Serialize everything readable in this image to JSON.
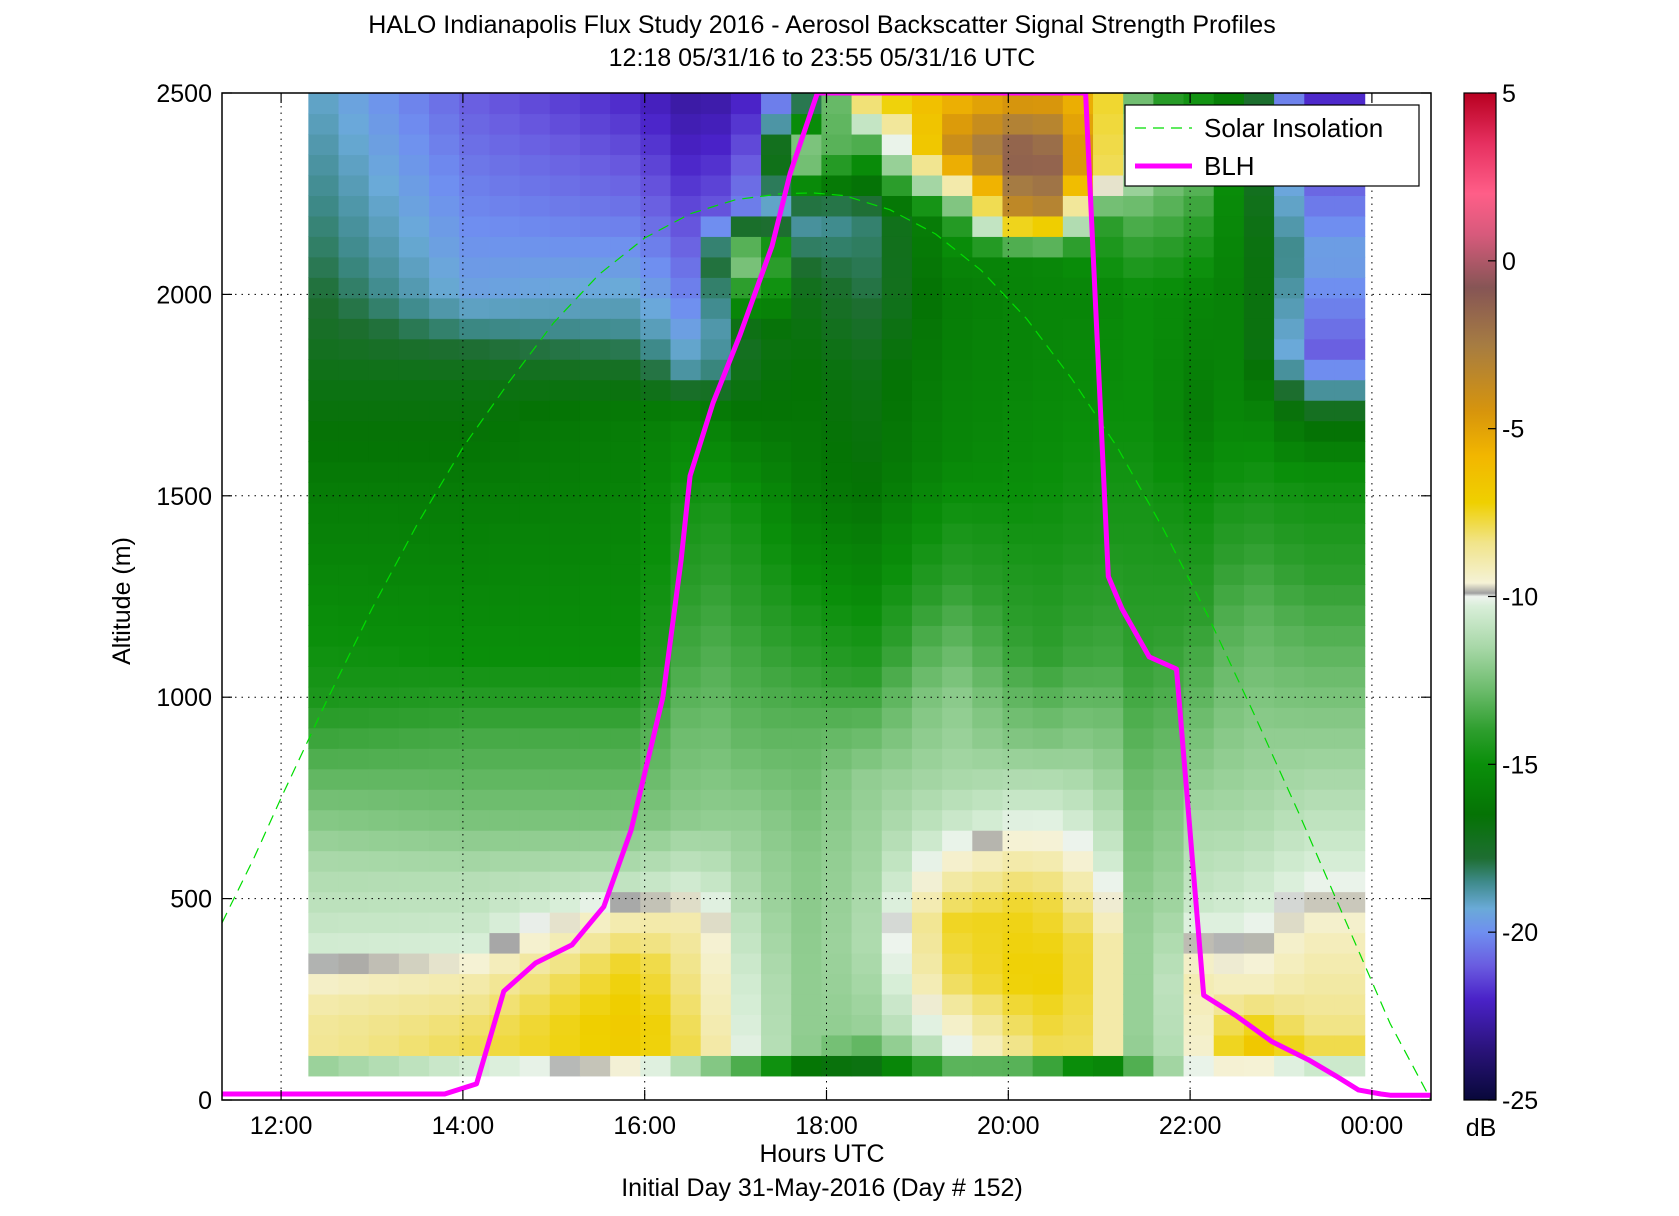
{
  "chart_data": {
    "type": "heatmap",
    "title": "HALO Indianapolis Flux Study 2016 - Aerosol Backscatter Signal Strength Profiles",
    "subtitle": "12:18 05/31/16 to 23:55 05/31/16  UTC",
    "xlabel": "Hours UTC",
    "xlabel2": "Initial Day 31-May-2016 (Day # 152)",
    "ylabel": "Altitude (m)",
    "xlim": [
      11.35,
      24.65
    ],
    "ylim": [
      0,
      2500
    ],
    "x_ticks": [
      12,
      14,
      16,
      18,
      20,
      22,
      24
    ],
    "x_tick_labels": [
      "12:00",
      "14:00",
      "16:00",
      "18:00",
      "20:00",
      "22:00",
      "00:00"
    ],
    "y_ticks": [
      0,
      500,
      1000,
      1500,
      2000,
      2500
    ],
    "y_tick_labels": [
      "0",
      "500",
      "1000",
      "1500",
      "2000",
      "2500"
    ],
    "grid": true,
    "legend_position": "top-right",
    "data_extent": {
      "x_start": 12.3,
      "x_end": 23.92,
      "y_bottom": 60,
      "y_top": 2500
    },
    "colorbar": {
      "label": "dB",
      "range": [
        -25,
        5
      ],
      "ticks": [
        -25,
        -20,
        -15,
        -10,
        -5,
        0,
        5
      ],
      "colors": [
        "#08083a",
        "#2a137a",
        "#4a22c8",
        "#6a5ce0",
        "#6f8ff0",
        "#6aaad8",
        "#3e8a8a",
        "#1e6e32",
        "#057305",
        "#0a8f0a",
        "#2d9e2d",
        "#6bbb6b",
        "#a8d8a8",
        "#d8eed8",
        "#eef4ee",
        "#a0a0a0",
        "#f5f2d6",
        "#f1e48a",
        "#efd000",
        "#f2b600",
        "#d7950c",
        "#a67c42",
        "#865555",
        "#d85a7c",
        "#ff5e88",
        "#e63060",
        "#b80020"
      ],
      "stops": [
        -25,
        -23.5,
        -22,
        -21,
        -20,
        -19.3,
        -18.5,
        -17.8,
        -16.5,
        -15,
        -14,
        -12.8,
        -11.5,
        -10.3,
        -10.0,
        -9.9,
        -9.6,
        -8.4,
        -7.2,
        -5.8,
        -4.5,
        -2.5,
        -0.8,
        0.8,
        2.0,
        3.5,
        5
      ]
    },
    "heatmap": {
      "x_breakpoints": [
        12.3,
        14.1,
        15.9,
        16.6,
        17.2,
        17.75,
        18.4,
        19.35,
        20.3,
        21.0,
        21.5,
        22.1,
        22.6,
        23.3,
        23.92
      ],
      "altitude_profiles": [
        [
          [
            60,
            -17
          ],
          [
            100,
            -9
          ],
          [
            150,
            -8.5
          ],
          [
            250,
            -9
          ],
          [
            400,
            -10.6
          ],
          [
            600,
            -11.5
          ],
          [
            800,
            -13
          ],
          [
            1000,
            -14.5
          ],
          [
            1500,
            -16
          ],
          [
            1800,
            -17
          ],
          [
            2100,
            -18
          ],
          [
            2500,
            -19
          ]
        ],
        [
          [
            60,
            -15
          ],
          [
            100,
            -7.8
          ],
          [
            200,
            -8.2
          ],
          [
            300,
            -9
          ],
          [
            400,
            -10.5
          ],
          [
            550,
            -11.2
          ],
          [
            700,
            -12.5
          ],
          [
            900,
            -13.5
          ],
          [
            1100,
            -15
          ],
          [
            1500,
            -16
          ],
          [
            1800,
            -17
          ],
          [
            2000,
            -19.5
          ],
          [
            2500,
            -21
          ]
        ],
        [
          [
            60,
            -14
          ],
          [
            100,
            -7
          ],
          [
            200,
            -6.8
          ],
          [
            350,
            -7.5
          ],
          [
            450,
            -9
          ],
          [
            550,
            -11
          ],
          [
            700,
            -12.5
          ],
          [
            900,
            -13.5
          ],
          [
            1100,
            -15
          ],
          [
            1400,
            -15.5
          ],
          [
            1700,
            -16
          ],
          [
            1900,
            -18.5
          ],
          [
            2200,
            -20.5
          ],
          [
            2500,
            -22
          ]
        ],
        [
          [
            60,
            -18
          ],
          [
            100,
            -8
          ],
          [
            250,
            -8.5
          ],
          [
            450,
            -9
          ],
          [
            550,
            -10.5
          ],
          [
            700,
            -12
          ],
          [
            900,
            -12.5
          ],
          [
            1200,
            -13.5
          ],
          [
            1500,
            -14.5
          ],
          [
            1700,
            -15.5
          ],
          [
            1800,
            -19
          ],
          [
            2000,
            -20.5
          ],
          [
            2300,
            -22
          ],
          [
            2500,
            -23
          ]
        ],
        [
          [
            60,
            -16
          ],
          [
            120,
            -10.5
          ],
          [
            300,
            -10.8
          ],
          [
            500,
            -11.5
          ],
          [
            700,
            -12
          ],
          [
            900,
            -13
          ],
          [
            1200,
            -14
          ],
          [
            1500,
            -15
          ],
          [
            1700,
            -16.5
          ],
          [
            1900,
            -17
          ],
          [
            2100,
            -10
          ],
          [
            2200,
            -20
          ],
          [
            2500,
            -22
          ]
        ],
        [
          [
            60,
            -19.5
          ],
          [
            120,
            -12
          ],
          [
            300,
            -12
          ],
          [
            600,
            -12.2
          ],
          [
            900,
            -13
          ],
          [
            1200,
            -14.5
          ],
          [
            1500,
            -16
          ],
          [
            1800,
            -16.5
          ],
          [
            2000,
            -17
          ],
          [
            2200,
            -19
          ],
          [
            2350,
            -11
          ],
          [
            2500,
            -20
          ]
        ],
        [
          [
            60,
            -19
          ],
          [
            150,
            -12
          ],
          [
            400,
            -11.5
          ],
          [
            800,
            -12
          ],
          [
            1100,
            -14.5
          ],
          [
            1500,
            -16.5
          ],
          [
            1800,
            -17
          ],
          [
            2000,
            -18
          ],
          [
            2200,
            -18.5
          ],
          [
            2350,
            -15
          ],
          [
            2500,
            -7
          ]
        ],
        [
          [
            60,
            -15
          ],
          [
            120,
            -10.5
          ],
          [
            300,
            -8
          ],
          [
            450,
            -7.5
          ],
          [
            550,
            -9
          ],
          [
            700,
            -10.8
          ],
          [
            800,
            -11.5
          ],
          [
            1000,
            -12
          ],
          [
            1300,
            -14
          ],
          [
            1600,
            -15.5
          ],
          [
            2000,
            -16
          ],
          [
            2200,
            -15
          ],
          [
            2350,
            -4
          ],
          [
            2500,
            -6
          ]
        ],
        [
          [
            60,
            -17
          ],
          [
            120,
            -8
          ],
          [
            300,
            -7
          ],
          [
            500,
            -7.5
          ],
          [
            650,
            -9.5
          ],
          [
            900,
            -12.5
          ],
          [
            1100,
            -14
          ],
          [
            1500,
            -15
          ],
          [
            1900,
            -15.5
          ],
          [
            2100,
            -15.5
          ],
          [
            2200,
            -1
          ],
          [
            2350,
            0
          ],
          [
            2500,
            -5
          ]
        ],
        [
          [
            60,
            -22
          ],
          [
            120,
            -8
          ],
          [
            400,
            -8
          ],
          [
            600,
            -10
          ],
          [
            800,
            -11.5
          ],
          [
            1100,
            -13.5
          ],
          [
            1400,
            -14.5
          ],
          [
            1700,
            -15
          ],
          [
            2000,
            -15.5
          ],
          [
            2200,
            -14
          ],
          [
            2300,
            -7
          ],
          [
            2500,
            -6
          ]
        ],
        [
          [
            60,
            -13
          ],
          [
            150,
            -12.5
          ],
          [
            500,
            -12.5
          ],
          [
            800,
            -13
          ],
          [
            1100,
            -14
          ],
          [
            1400,
            -14.5
          ],
          [
            1700,
            -15
          ],
          [
            2000,
            -15
          ],
          [
            2300,
            -12
          ],
          [
            2500,
            -14
          ]
        ],
        [
          [
            60,
            -11
          ],
          [
            100,
            -9.5
          ],
          [
            300,
            -9
          ],
          [
            500,
            -10.7
          ],
          [
            700,
            -11.5
          ],
          [
            900,
            -12.5
          ],
          [
            1200,
            -14
          ],
          [
            1500,
            -15
          ],
          [
            1700,
            -16
          ],
          [
            2000,
            -15.5
          ],
          [
            2300,
            -13
          ],
          [
            2500,
            -15
          ]
        ],
        [
          [
            60,
            -15
          ],
          [
            100,
            -6
          ],
          [
            180,
            -7
          ],
          [
            300,
            -9.6
          ],
          [
            500,
            -10.5
          ],
          [
            700,
            -11.5
          ],
          [
            900,
            -12
          ],
          [
            1200,
            -13
          ],
          [
            1500,
            -14.5
          ],
          [
            1800,
            -15.5
          ],
          [
            2100,
            -16
          ],
          [
            2500,
            -16.5
          ]
        ],
        [
          [
            60,
            -16
          ],
          [
            100,
            -7.5
          ],
          [
            200,
            -8.5
          ],
          [
            400,
            -9.2
          ],
          [
            600,
            -10.4
          ],
          [
            800,
            -11.5
          ],
          [
            1000,
            -12.5
          ],
          [
            1300,
            -14
          ],
          [
            1550,
            -15
          ],
          [
            1700,
            -17
          ],
          [
            1850,
            -21
          ],
          [
            2100,
            -19.5
          ],
          [
            2300,
            -21
          ],
          [
            2500,
            -22
          ]
        ]
      ]
    },
    "series": [
      {
        "name": "Solar Insolation",
        "style": "dashed",
        "color": "#00dd00",
        "x": [
          11.35,
          11.7,
          12.0,
          12.5,
          13.0,
          13.5,
          14.0,
          14.5,
          15.0,
          15.5,
          16.0,
          16.5,
          17.0,
          17.5,
          17.85,
          18.2,
          18.7,
          19.2,
          19.7,
          20.2,
          20.7,
          21.2,
          21.7,
          22.2,
          22.7,
          23.2,
          23.7,
          24.2,
          24.65
        ],
        "y": [
          440,
          600,
          750,
          990,
          1220,
          1430,
          1620,
          1780,
          1930,
          2050,
          2140,
          2200,
          2235,
          2250,
          2252,
          2245,
          2210,
          2150,
          2060,
          1940,
          1790,
          1620,
          1420,
          1200,
          960,
          710,
          450,
          190,
          0
        ]
      },
      {
        "name": "BLH",
        "style": "solid",
        "color": "#ff00ff",
        "x": [
          11.35,
          13.8,
          14.15,
          14.45,
          14.8,
          15.2,
          15.55,
          15.85,
          16.2,
          16.4,
          16.5,
          16.75,
          17.05,
          17.4,
          17.6,
          17.9,
          20.85,
          21.1,
          21.25,
          21.55,
          21.85,
          22.15,
          22.5,
          22.9,
          23.3,
          23.6,
          23.85,
          24.1,
          24.2,
          24.45,
          24.65
        ],
        "y": [
          15,
          15,
          40,
          270,
          340,
          385,
          480,
          670,
          1000,
          1340,
          1550,
          1730,
          1900,
          2120,
          2300,
          2500,
          2500,
          1300,
          1220,
          1100,
          1070,
          260,
          210,
          145,
          100,
          60,
          25,
          15,
          12,
          12,
          12
        ]
      }
    ]
  }
}
